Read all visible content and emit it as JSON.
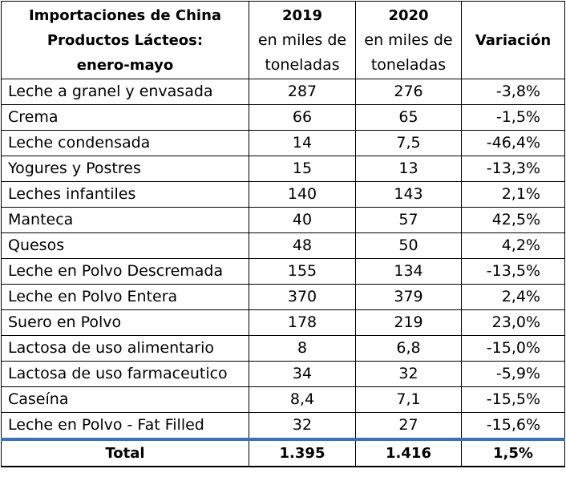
{
  "header": {
    "title_lines": [
      "Importaciones de China",
      "Productos Lácteos:",
      "enero-mayo"
    ],
    "col2019": {
      "year": "2019",
      "unit_line1": "en miles de",
      "unit_line2": "toneladas"
    },
    "col2020": {
      "year": "2020",
      "unit_line1": "en miles de",
      "unit_line2": "toneladas"
    },
    "variation": "Variación"
  },
  "rows": [
    {
      "product": "Leche a granel y envasada",
      "y2019": "287",
      "y2020": "276",
      "variation": "-3,8%"
    },
    {
      "product": "Crema",
      "y2019": "66",
      "y2020": "65",
      "variation": "-1,5%"
    },
    {
      "product": "Leche condensada",
      "y2019": "14",
      "y2020": "7,5",
      "variation": "-46,4%"
    },
    {
      "product": "Yogures y Postres",
      "y2019": "15",
      "y2020": "13",
      "variation": "-13,3%"
    },
    {
      "product": "Leches infantiles",
      "y2019": "140",
      "y2020": "143",
      "variation": "2,1%"
    },
    {
      "product": "Manteca",
      "y2019": "40",
      "y2020": "57",
      "variation": "42,5%"
    },
    {
      "product": "Quesos",
      "y2019": "48",
      "y2020": "50",
      "variation": "4,2%"
    },
    {
      "product": "Leche en Polvo Descremada",
      "y2019": "155",
      "y2020": "134",
      "variation": "-13,5%"
    },
    {
      "product": "Leche en Polvo Entera",
      "y2019": "370",
      "y2020": "379",
      "variation": "2,4%"
    },
    {
      "product": "Suero en Polvo",
      "y2019": "178",
      "y2020": "219",
      "variation": "23,0%"
    },
    {
      "product": "Lactosa de uso alimentario",
      "y2019": "8",
      "y2020": "6,8",
      "variation": "-15,0%"
    },
    {
      "product": "Lactosa de uso farmaceutico",
      "y2019": "34",
      "y2020": "32",
      "variation": "-5,9%"
    },
    {
      "product": "Caseína",
      "y2019": "8,4",
      "y2020": "7,1",
      "variation": "-15,5%"
    },
    {
      "product": "Leche en Polvo - Fat Filled",
      "y2019": "32",
      "y2020": "27",
      "variation": "-15,6%"
    }
  ],
  "total": {
    "label": "Total",
    "y2019": "1.395",
    "y2020": "1.416",
    "variation": "1,5%"
  },
  "colors": {
    "total_separator": "#3c6fb5",
    "border": "#000000"
  }
}
